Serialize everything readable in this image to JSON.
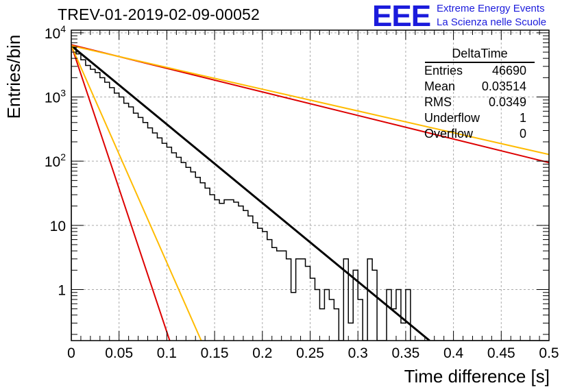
{
  "header": {
    "title": "TREV-01-2019-02-09-00052",
    "logo_text": "EEE",
    "logo_line1": "Extreme Energy Events",
    "logo_line2": "La Scienza nelle Scuole"
  },
  "stats": {
    "title": "DeltaTime",
    "rows": [
      {
        "label": "Entries",
        "value": "46690"
      },
      {
        "label": "Mean",
        "value": "0.03514"
      },
      {
        "label": "RMS",
        "value": "0.0349"
      },
      {
        "label": "Underflow",
        "value": "1"
      },
      {
        "label": "Overflow",
        "value": "0"
      }
    ]
  },
  "chart_data": {
    "type": "line",
    "xlabel": "Time difference [s]",
    "ylabel": "Entries/bin",
    "xlim": [
      0,
      0.5
    ],
    "ylim": [
      0.16,
      11000
    ],
    "yscale": "log",
    "grid": true,
    "x_ticks": [
      "0",
      "0.05",
      "0.1",
      "0.15",
      "0.2",
      "0.25",
      "0.3",
      "0.35",
      "0.4",
      "0.45",
      "0.5"
    ],
    "y_ticks": [
      {
        "value": 1,
        "label": "1"
      },
      {
        "value": 10,
        "label": "10"
      },
      {
        "value": 100,
        "label": "10^2"
      },
      {
        "value": 1000,
        "label": "10^3"
      },
      {
        "value": 10000,
        "label": "10^4"
      }
    ],
    "histogram": {
      "bin_width": 0.005,
      "values": [
        5800,
        4700,
        3800,
        3100,
        2700,
        2400,
        2000,
        1700,
        1400,
        1150,
        1000,
        800,
        700,
        560,
        480,
        400,
        330,
        275,
        230,
        190,
        165,
        135,
        115,
        95,
        80,
        68,
        56,
        46,
        38,
        30,
        25,
        22,
        25,
        25,
        23,
        20,
        17,
        14,
        11,
        9,
        8,
        6,
        4.5,
        4,
        4,
        3,
        0.9,
        3,
        3,
        2.3,
        1.5,
        1,
        0.5,
        1,
        0.7,
        0.5,
        0,
        3,
        0.3,
        2,
        0.7,
        0,
        3,
        2,
        0,
        0,
        1,
        0.5,
        1,
        0.3,
        1,
        0,
        0,
        0,
        0,
        0,
        0,
        0,
        0,
        0,
        0,
        0,
        0,
        0,
        0,
        0,
        0,
        0,
        0,
        0,
        0,
        0,
        0,
        0,
        0,
        0,
        0,
        0,
        0,
        0
      ],
      "color": "#000000"
    },
    "series": [
      {
        "x": [
          0,
          0.375
        ],
        "y": [
          6300,
          0.16
        ],
        "color": "#000000",
        "width": 3
      },
      {
        "x": [
          0,
          0.103
        ],
        "y": [
          6400,
          0.16
        ],
        "color": "#dd0000",
        "width": 2
      },
      {
        "x": [
          0,
          0.5
        ],
        "y": [
          6500,
          95
        ],
        "color": "#dd0000",
        "width": 2
      },
      {
        "x": [
          0,
          0.136
        ],
        "y": [
          6300,
          0.16
        ],
        "color": "#ffbb00",
        "width": 2
      },
      {
        "x": [
          0,
          0.5
        ],
        "y": [
          6300,
          127
        ],
        "color": "#ffbb00",
        "width": 2
      }
    ]
  }
}
